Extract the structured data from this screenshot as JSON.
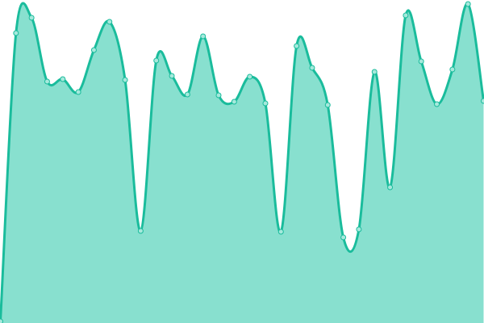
{
  "chart_data": {
    "type": "area",
    "smooth": true,
    "axes_visible": false,
    "grid": false,
    "ylim": [
      0,
      400
    ],
    "x": [
      0,
      1,
      2,
      3,
      4,
      5,
      6,
      7,
      8,
      9,
      10,
      11,
      12,
      13,
      14,
      15,
      16,
      17,
      18,
      19,
      20,
      21,
      22,
      23,
      24,
      25,
      26,
      27,
      28,
      29,
      30,
      31
    ],
    "values": [
      2,
      359,
      378,
      299,
      302,
      286,
      338,
      373,
      301,
      114,
      325,
      306,
      283,
      355,
      282,
      274,
      305,
      272,
      113,
      343,
      316,
      270,
      106,
      116,
      311,
      168,
      381,
      324,
      271,
      314,
      395,
      275
    ],
    "colors": {
      "line": "#1abc9c",
      "fill": "#88e0cf",
      "marker_fill": "#a6e9dc",
      "marker_stroke": "#1abc9c"
    }
  }
}
